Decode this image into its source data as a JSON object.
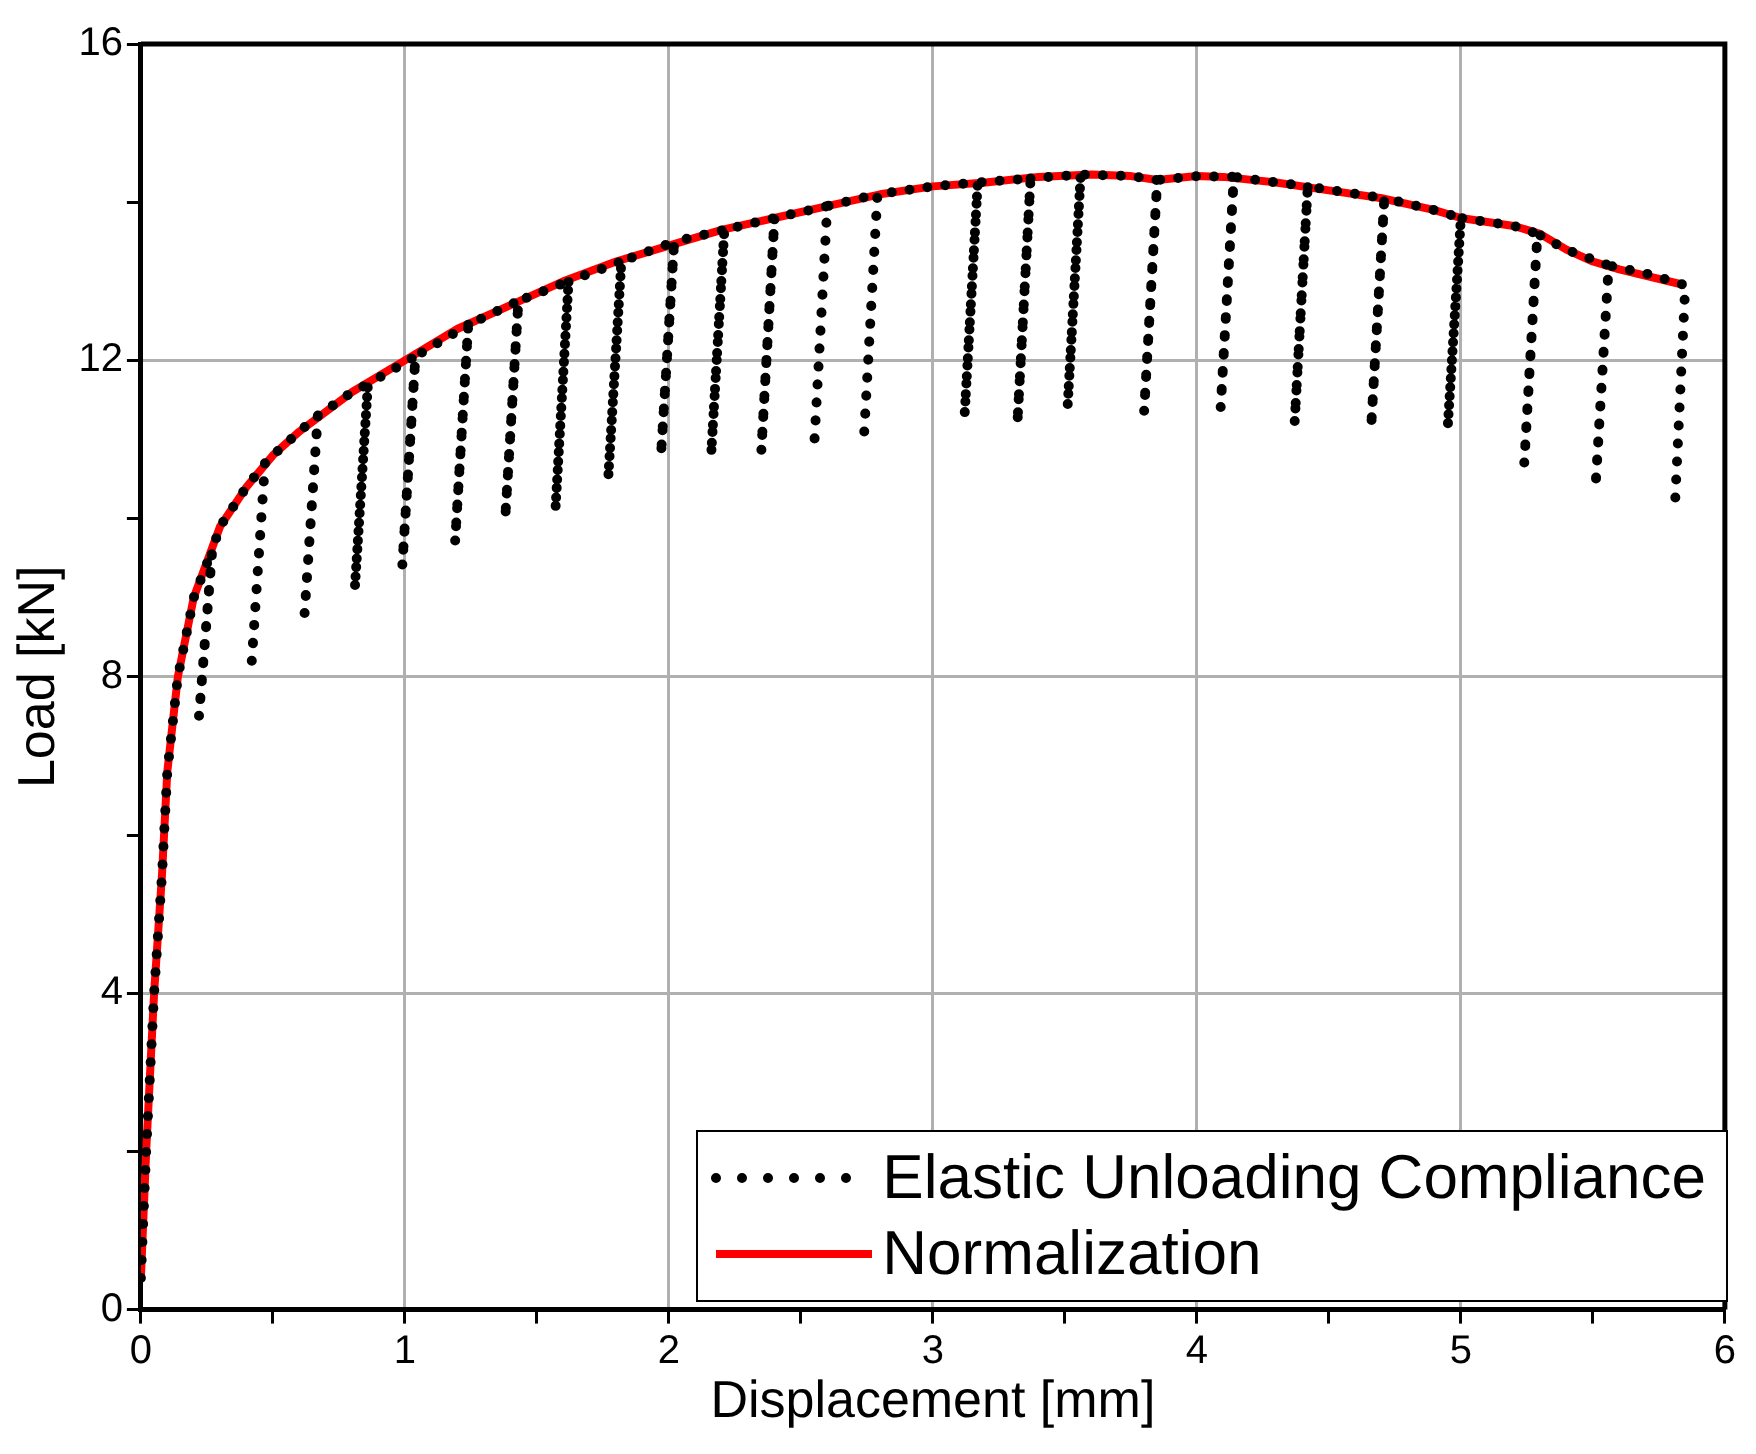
{
  "chart_data": {
    "type": "line",
    "xlabel": "Displacement [mm]",
    "ylabel": "Load [kN]",
    "xlim": [
      0,
      6
    ],
    "ylim": [
      0,
      16
    ],
    "xticks": [
      0,
      {
        "value": 0.5,
        "label": null
      },
      1,
      {
        "value": 1.5,
        "label": null
      },
      2,
      {
        "value": 2.5,
        "label": null
      },
      3,
      {
        "value": 3.5,
        "label": null
      },
      4,
      {
        "value": 4.5,
        "label": null
      },
      5,
      {
        "value": 5.5,
        "label": null
      },
      6
    ],
    "yticks": [
      0,
      {
        "value": 2,
        "label": null
      },
      4,
      {
        "value": 6,
        "label": null
      },
      8,
      {
        "value": 10,
        "label": null
      },
      12,
      {
        "value": 14,
        "label": null
      },
      16
    ],
    "grid": true,
    "legend": "bottom right",
    "marker": "none",
    "series": [
      {
        "name": "Elastic Unloading Compliance",
        "color": "#000000",
        "line_style": "dotted",
        "x": [
          0,
          0.02,
          0.05,
          0.08,
          0.1,
          0.14,
          0.2,
          0.27,
          0.22,
          0.27,
          0.3,
          0.4,
          0.47,
          0.42,
          0.47,
          0.5,
          0.6,
          0.67,
          0.62,
          0.67,
          0.8,
          0.86,
          0.81,
          0.86,
          1.04,
          0.99,
          1.04,
          1.24,
          1.19,
          1.24,
          1.43,
          1.38,
          1.43,
          1.62,
          1.57,
          1.62,
          1.82,
          1.77,
          1.82,
          2.02,
          1.97,
          2.02,
          2.21,
          2.16,
          2.21,
          2.4,
          2.35,
          2.4,
          2.6,
          2.55,
          2.6,
          2.79,
          2.74,
          2.79,
          3.0,
          3.17,
          3.12,
          3.17,
          3.37,
          3.32,
          3.37,
          3.56,
          3.51,
          3.56,
          3.75,
          3.85,
          3.8,
          3.85,
          4.0,
          4.14,
          4.09,
          4.14,
          4.3,
          4.42,
          4.37,
          4.42,
          4.71,
          4.66,
          4.71,
          4.9,
          5.0,
          4.95,
          5.0,
          5.2,
          5.29,
          5.24,
          5.29,
          5.4,
          5.56,
          5.51,
          5.56,
          5.7,
          5.85,
          5.81
        ],
        "values": [
          0.4,
          2.0,
          4.0,
          5.5,
          6.8,
          8.0,
          9.0,
          9.6,
          7.5,
          9.6,
          9.9,
          10.4,
          10.7,
          8.2,
          10.7,
          10.8,
          11.1,
          11.3,
          8.8,
          11.3,
          11.6,
          11.7,
          9.1,
          11.7,
          12.05,
          9.4,
          12.05,
          12.45,
          9.7,
          12.45,
          12.75,
          10.0,
          12.75,
          13.0,
          10.1,
          13.0,
          13.25,
          10.5,
          13.25,
          13.5,
          10.8,
          13.5,
          13.65,
          10.8,
          13.65,
          13.8,
          10.85,
          13.8,
          13.95,
          10.9,
          13.95,
          14.1,
          11.1,
          14.1,
          14.2,
          14.25,
          11.3,
          14.25,
          14.3,
          11.2,
          14.3,
          14.35,
          11.4,
          14.35,
          14.33,
          14.28,
          11.35,
          14.28,
          14.33,
          14.32,
          11.4,
          14.32,
          14.25,
          14.2,
          11.2,
          14.2,
          14.05,
          11.15,
          14.05,
          13.9,
          13.8,
          11.15,
          13.8,
          13.7,
          13.6,
          10.7,
          13.6,
          13.4,
          13.2,
          10.4,
          13.2,
          13.1,
          12.95,
          10.1
        ]
      },
      {
        "name": "Normalization",
        "color": "#ff0000",
        "line_style": "solid",
        "x": [
          0,
          0.02,
          0.05,
          0.08,
          0.1,
          0.14,
          0.2,
          0.3,
          0.4,
          0.5,
          0.6,
          0.8,
          1.0,
          1.2,
          1.4,
          1.6,
          1.8,
          2.0,
          2.2,
          2.4,
          2.6,
          2.8,
          3.0,
          3.2,
          3.4,
          3.6,
          3.75,
          3.85,
          4.0,
          4.1,
          4.3,
          4.5,
          4.7,
          4.9,
          5.0,
          5.2,
          5.3,
          5.4,
          5.5,
          5.6,
          5.85
        ],
        "values": [
          0.4,
          2.0,
          4.0,
          5.5,
          6.8,
          8.0,
          9.0,
          9.9,
          10.4,
          10.8,
          11.1,
          11.6,
          12.0,
          12.4,
          12.7,
          13.0,
          13.25,
          13.45,
          13.65,
          13.8,
          13.95,
          14.1,
          14.2,
          14.25,
          14.32,
          14.35,
          14.33,
          14.28,
          14.33,
          14.32,
          14.25,
          14.15,
          14.05,
          13.9,
          13.8,
          13.7,
          13.6,
          13.4,
          13.25,
          13.15,
          12.95
        ]
      }
    ]
  }
}
